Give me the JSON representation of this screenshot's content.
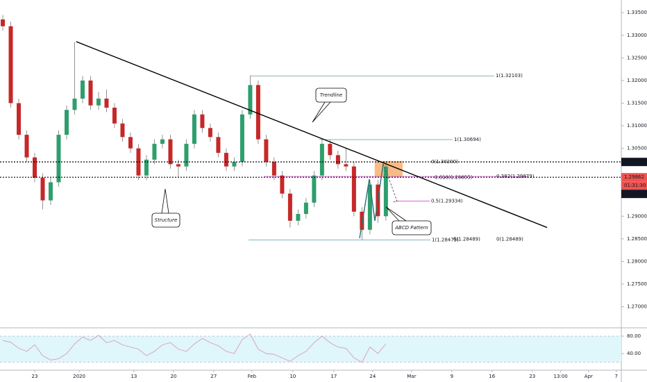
{
  "chart_data": [
    {
      "type": "candlestick",
      "x": [
        -4,
        -3,
        -2,
        -1,
        0,
        1,
        2,
        3,
        4,
        5,
        6,
        7,
        8,
        9,
        10,
        11,
        12,
        13,
        14,
        15,
        16,
        17,
        18,
        19,
        20,
        21,
        22,
        23,
        24,
        25,
        26,
        27,
        28,
        29,
        30,
        31,
        32,
        33,
        34,
        35,
        36,
        37,
        38,
        39,
        40,
        41,
        42,
        43,
        44
      ],
      "open": [
        1.3335,
        1.332,
        1.315,
        1.308,
        1.303,
        1.2985,
        1.2935,
        1.2975,
        1.308,
        1.3135,
        1.316,
        1.32,
        1.3145,
        1.316,
        1.314,
        1.3105,
        1.3075,
        1.305,
        1.299,
        1.3025,
        1.306,
        1.307,
        1.3015,
        1.301,
        1.306,
        1.3125,
        1.3095,
        1.3075,
        1.304,
        1.301,
        1.302,
        1.3125,
        1.319,
        1.307,
        1.302,
        1.299,
        1.295,
        1.289,
        1.2905,
        1.293,
        1.299,
        1.306,
        1.3035,
        1.3015,
        1.301,
        1.291,
        1.287,
        1.297,
        1.29
      ],
      "high": [
        1.3345,
        1.333,
        1.316,
        1.309,
        1.304,
        1.2995,
        1.2985,
        1.309,
        1.3145,
        1.3285,
        1.321,
        1.321,
        1.3175,
        1.318,
        1.315,
        1.3115,
        1.3085,
        1.306,
        1.3035,
        1.307,
        1.308,
        1.308,
        1.3025,
        1.307,
        1.3135,
        1.3135,
        1.3105,
        1.3085,
        1.305,
        1.303,
        1.3135,
        1.321,
        1.32,
        1.308,
        1.303,
        1.3,
        1.296,
        1.2915,
        1.294,
        1.3,
        1.307,
        1.307,
        1.3045,
        1.305,
        1.302,
        1.292,
        1.298,
        1.298,
        1.302
      ],
      "low": [
        1.331,
        1.314,
        1.307,
        1.302,
        1.2975,
        1.2915,
        1.2925,
        1.2965,
        1.307,
        1.3125,
        1.315,
        1.3135,
        1.3135,
        1.313,
        1.3095,
        1.3065,
        1.304,
        1.298,
        1.298,
        1.3015,
        1.305,
        1.3005,
        1.2985,
        1.3,
        1.305,
        1.3085,
        1.3065,
        1.303,
        1.3,
        1.3,
        1.301,
        1.3115,
        1.306,
        1.301,
        1.298,
        1.294,
        1.2875,
        1.288,
        1.2895,
        1.292,
        1.298,
        1.3025,
        1.3005,
        1.3,
        1.29,
        1.2848,
        1.286,
        1.2885,
        1.289
      ],
      "close": [
        1.332,
        1.315,
        1.308,
        1.303,
        1.2985,
        1.2935,
        1.2975,
        1.308,
        1.3135,
        1.316,
        1.32,
        1.3145,
        1.316,
        1.314,
        1.3105,
        1.3075,
        1.305,
        1.299,
        1.3025,
        1.306,
        1.307,
        1.3015,
        1.301,
        1.306,
        1.3125,
        1.3095,
        1.3075,
        1.304,
        1.301,
        1.302,
        1.3125,
        1.319,
        1.307,
        1.302,
        1.299,
        1.295,
        1.289,
        1.2905,
        1.293,
        1.299,
        1.306,
        1.3035,
        1.3015,
        1.301,
        1.291,
        1.287,
        1.297,
        1.29,
        1.301
      ],
      "up_color": "#2e9e6e",
      "down_color": "#c62828",
      "xlim": [
        -4.35,
        73.5
      ],
      "ylim": [
        1.2664,
        1.3378
      ],
      "yticks": [
        {
          "value": 1.335,
          "label": "1.33500"
        },
        {
          "value": 1.33,
          "label": "1.33000"
        },
        {
          "value": 1.325,
          "label": "1.32500"
        },
        {
          "value": 1.32,
          "label": "1.32000"
        },
        {
          "value": 1.315,
          "label": "1.31500"
        },
        {
          "value": 1.31,
          "label": "1.31000"
        },
        {
          "value": 1.305,
          "label": "1.30500"
        },
        {
          "value": 1.29,
          "label": "1.29000"
        },
        {
          "value": 1.285,
          "label": "1.28500"
        },
        {
          "value": 1.28,
          "label": "1.28000"
        },
        {
          "value": 1.275,
          "label": "1.27500"
        },
        {
          "value": 1.27,
          "label": "1.27000"
        }
      ],
      "xticks": [
        {
          "value": 0,
          "label": "23"
        },
        {
          "value": 5.57,
          "label": "2020"
        },
        {
          "value": 12.43,
          "label": "13"
        },
        {
          "value": 17.39,
          "label": "20"
        },
        {
          "value": 22.43,
          "label": "27"
        },
        {
          "value": 27.22,
          "label": "Feb"
        },
        {
          "value": 32.35,
          "label": "10"
        },
        {
          "value": 37.48,
          "label": "17"
        },
        {
          "value": 42.35,
          "label": "24"
        },
        {
          "value": 47.22,
          "label": "Mar"
        },
        {
          "value": 52.26,
          "label": "9"
        },
        {
          "value": 57.3,
          "label": "16"
        },
        {
          "value": 62.35,
          "label": "23"
        },
        {
          "value": 65.9,
          "label": "13:00"
        },
        {
          "value": 69.4,
          "label": "Apr"
        },
        {
          "value": 72.87,
          "label": "7"
        }
      ],
      "price_labels": [
        {
          "value": 1.302,
          "label": "1.30200",
          "color": "#131722",
          "dotted": true
        },
        {
          "value": 1.29862,
          "label": "1.29862",
          "color": "#ef5350",
          "dotted": true
        },
        {
          "label": "01:31:30",
          "color": "#ef5350"
        },
        {
          "value": 1.29859,
          "label": "1.29859",
          "color": "#131722"
        }
      ],
      "trendline": {
        "x": [
          5.2,
          64.2
        ],
        "y": [
          1.3286,
          1.2875
        ],
        "color": "#000000"
      },
      "zone": {
        "x": [
          42.6,
          46.1
        ],
        "y": [
          1.3022,
          1.2986
        ],
        "color": "#f7a35c"
      },
      "fib_levels": [
        {
          "value": 1.32103,
          "label": "1(1.32103)",
          "color": "#5d9ca0"
        },
        {
          "value": 1.30694,
          "label": "1(1.30694)",
          "color": "#5d9ca0"
        },
        {
          "value": 1.302,
          "label": "0(1.30200)",
          "color": "#a9cfd1"
        },
        {
          "value": 1.29855,
          "label": "0.618(1.29855)",
          "color": "#d96ad9"
        },
        {
          "value": 1.29879,
          "label": "0.382(1.29879)",
          "color": "#d96ad9"
        },
        {
          "value": 1.29334,
          "label": "0.5(1.29334)",
          "color": "#d94fd9"
        },
        {
          "value": 1.28475,
          "label": "1(1.28475)",
          "color": "#5d9ca0"
        },
        {
          "value": 1.28489,
          "label": "0(1.28489)",
          "color": "#5d9ca0"
        },
        {
          "value": 1.28489,
          "label": "0(1.28489)",
          "color": "#5d9ca0"
        }
      ],
      "callouts": [
        "Trendline",
        "Structure",
        "ABCD Pattern"
      ]
    },
    {
      "type": "line",
      "values": [
        70,
        66,
        52,
        45,
        60,
        35,
        25,
        28,
        40,
        62,
        78,
        70,
        82,
        65,
        70,
        60,
        55,
        50,
        35,
        45,
        60,
        65,
        50,
        45,
        62,
        75,
        65,
        58,
        45,
        40,
        72,
        85,
        50,
        40,
        38,
        30,
        22,
        35,
        45,
        65,
        80,
        65,
        55,
        52,
        30,
        20,
        55,
        40,
        62
      ],
      "color": "#d99ac4",
      "band": [
        20,
        80
      ],
      "band_color": "#dff6fb",
      "ylim": [
        1.6,
        97.6
      ],
      "yticks": [
        {
          "value": 80,
          "label": "80.00"
        },
        {
          "value": 40,
          "label": "40.00"
        }
      ]
    }
  ]
}
